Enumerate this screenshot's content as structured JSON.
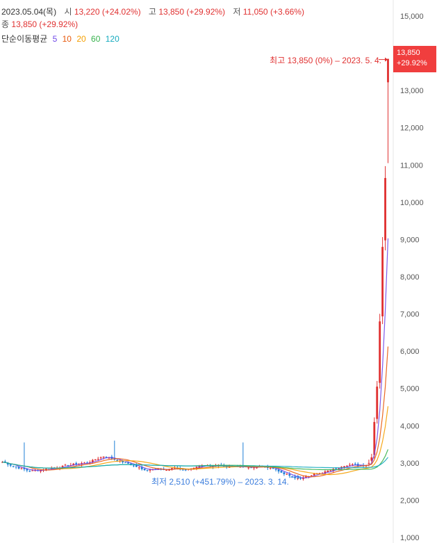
{
  "header": {
    "date": "2023.05.04(목)",
    "open_label": "시",
    "open_value": "13,220 (+24.02%)",
    "high_label": "고",
    "high_value": "13,850 (+29.92%)",
    "low_label": "저",
    "low_value": "11,050 (+3.66%)",
    "close_label": "종",
    "close_value": "13,850 (+29.92%)"
  },
  "ma_legend": {
    "title": "단순이동평균",
    "periods": [
      "5",
      "10",
      "20",
      "60",
      "120"
    ],
    "colors": [
      "#7048e8",
      "#e8590c",
      "#f59f00",
      "#37b24d",
      "#15aabf"
    ]
  },
  "current_price": {
    "price": "13,850",
    "change": "+29.92%"
  },
  "annotations": {
    "high": "최고 13,850 (0%) – 2023. 5. 4.",
    "low": "최저 2,510 (+451.79%) – 2023. 3. 14."
  },
  "chart_data": {
    "type": "candlestick",
    "y_axis_ticks": [
      "15,000",
      "14,000",
      "13,000",
      "12,000",
      "11,000",
      "10,000",
      "9,000",
      "8,000",
      "7,000",
      "6,000",
      "5,000",
      "4,000",
      "3,000",
      "2,000",
      "1,000"
    ],
    "ylim": [
      1000,
      15000
    ],
    "up_color": "#e03131",
    "down_color": "#1c7ed6",
    "last_candles": [
      {
        "date": "2023.05.04",
        "open": 13220,
        "high": 13850,
        "low": 11050,
        "close": 13850
      }
    ],
    "all_time_high": 13850,
    "all_time_low": 2510
  }
}
